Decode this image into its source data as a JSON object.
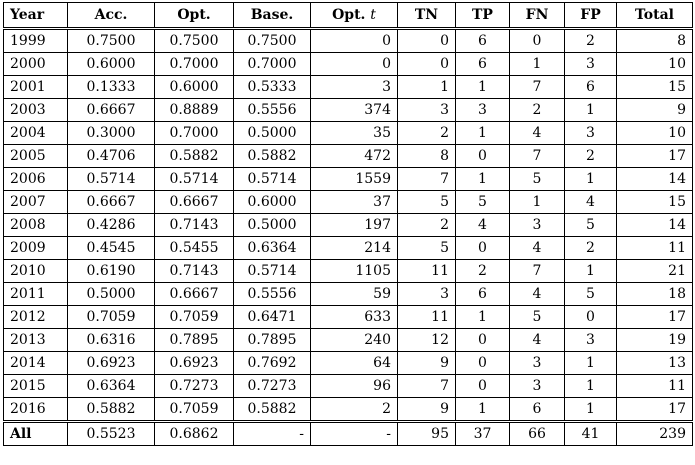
{
  "table": {
    "headers": {
      "year": "Year",
      "acc": "Acc.",
      "opt": "Opt.",
      "base": "Base.",
      "optt": "Opt.",
      "optt_var": "t",
      "tn": "TN",
      "tp": "TP",
      "fn": "FN",
      "fp": "FP",
      "total": "Total"
    },
    "rows": [
      {
        "year": "1999",
        "acc": "0.7500",
        "opt": "0.7500",
        "base": "0.7500",
        "optt": "0",
        "tn": "0",
        "tp": "6",
        "fn": "0",
        "fp": "2",
        "total": "8"
      },
      {
        "year": "2000",
        "acc": "0.6000",
        "opt": "0.7000",
        "base": "0.7000",
        "optt": "0",
        "tn": "0",
        "tp": "6",
        "fn": "1",
        "fp": "3",
        "total": "10"
      },
      {
        "year": "2001",
        "acc": "0.1333",
        "opt": "0.6000",
        "base": "0.5333",
        "optt": "3",
        "tn": "1",
        "tp": "1",
        "fn": "7",
        "fp": "6",
        "total": "15"
      },
      {
        "year": "2003",
        "acc": "0.6667",
        "opt": "0.8889",
        "base": "0.5556",
        "optt": "374",
        "tn": "3",
        "tp": "3",
        "fn": "2",
        "fp": "1",
        "total": "9"
      },
      {
        "year": "2004",
        "acc": "0.3000",
        "opt": "0.7000",
        "base": "0.5000",
        "optt": "35",
        "tn": "2",
        "tp": "1",
        "fn": "4",
        "fp": "3",
        "total": "10"
      },
      {
        "year": "2005",
        "acc": "0.4706",
        "opt": "0.5882",
        "base": "0.5882",
        "optt": "472",
        "tn": "8",
        "tp": "0",
        "fn": "7",
        "fp": "2",
        "total": "17"
      },
      {
        "year": "2006",
        "acc": "0.5714",
        "opt": "0.5714",
        "base": "0.5714",
        "optt": "1559",
        "tn": "7",
        "tp": "1",
        "fn": "5",
        "fp": "1",
        "total": "14"
      },
      {
        "year": "2007",
        "acc": "0.6667",
        "opt": "0.6667",
        "base": "0.6000",
        "optt": "37",
        "tn": "5",
        "tp": "5",
        "fn": "1",
        "fp": "4",
        "total": "15"
      },
      {
        "year": "2008",
        "acc": "0.4286",
        "opt": "0.7143",
        "base": "0.5000",
        "optt": "197",
        "tn": "2",
        "tp": "4",
        "fn": "3",
        "fp": "5",
        "total": "14"
      },
      {
        "year": "2009",
        "acc": "0.4545",
        "opt": "0.5455",
        "base": "0.6364",
        "optt": "214",
        "tn": "5",
        "tp": "0",
        "fn": "4",
        "fp": "2",
        "total": "11"
      },
      {
        "year": "2010",
        "acc": "0.6190",
        "opt": "0.7143",
        "base": "0.5714",
        "optt": "1105",
        "tn": "11",
        "tp": "2",
        "fn": "7",
        "fp": "1",
        "total": "21"
      },
      {
        "year": "2011",
        "acc": "0.5000",
        "opt": "0.6667",
        "base": "0.5556",
        "optt": "59",
        "tn": "3",
        "tp": "6",
        "fn": "4",
        "fp": "5",
        "total": "18"
      },
      {
        "year": "2012",
        "acc": "0.7059",
        "opt": "0.7059",
        "base": "0.6471",
        "optt": "633",
        "tn": "11",
        "tp": "1",
        "fn": "5",
        "fp": "0",
        "total": "17"
      },
      {
        "year": "2013",
        "acc": "0.6316",
        "opt": "0.7895",
        "base": "0.7895",
        "optt": "240",
        "tn": "12",
        "tp": "0",
        "fn": "4",
        "fp": "3",
        "total": "19"
      },
      {
        "year": "2014",
        "acc": "0.6923",
        "opt": "0.6923",
        "base": "0.7692",
        "optt": "64",
        "tn": "9",
        "tp": "0",
        "fn": "3",
        "fp": "1",
        "total": "13"
      },
      {
        "year": "2015",
        "acc": "0.6364",
        "opt": "0.7273",
        "base": "0.7273",
        "optt": "96",
        "tn": "7",
        "tp": "0",
        "fn": "3",
        "fp": "1",
        "total": "11"
      },
      {
        "year": "2016",
        "acc": "0.5882",
        "opt": "0.7059",
        "base": "0.5882",
        "optt": "2",
        "tn": "9",
        "tp": "1",
        "fn": "6",
        "fp": "1",
        "total": "17"
      }
    ],
    "summary": {
      "year": "All",
      "acc": "0.5523",
      "opt": "0.6862",
      "base": "-",
      "optt": "-",
      "tn": "95",
      "tp": "37",
      "fn": "66",
      "fp": "41",
      "total": "239"
    }
  }
}
